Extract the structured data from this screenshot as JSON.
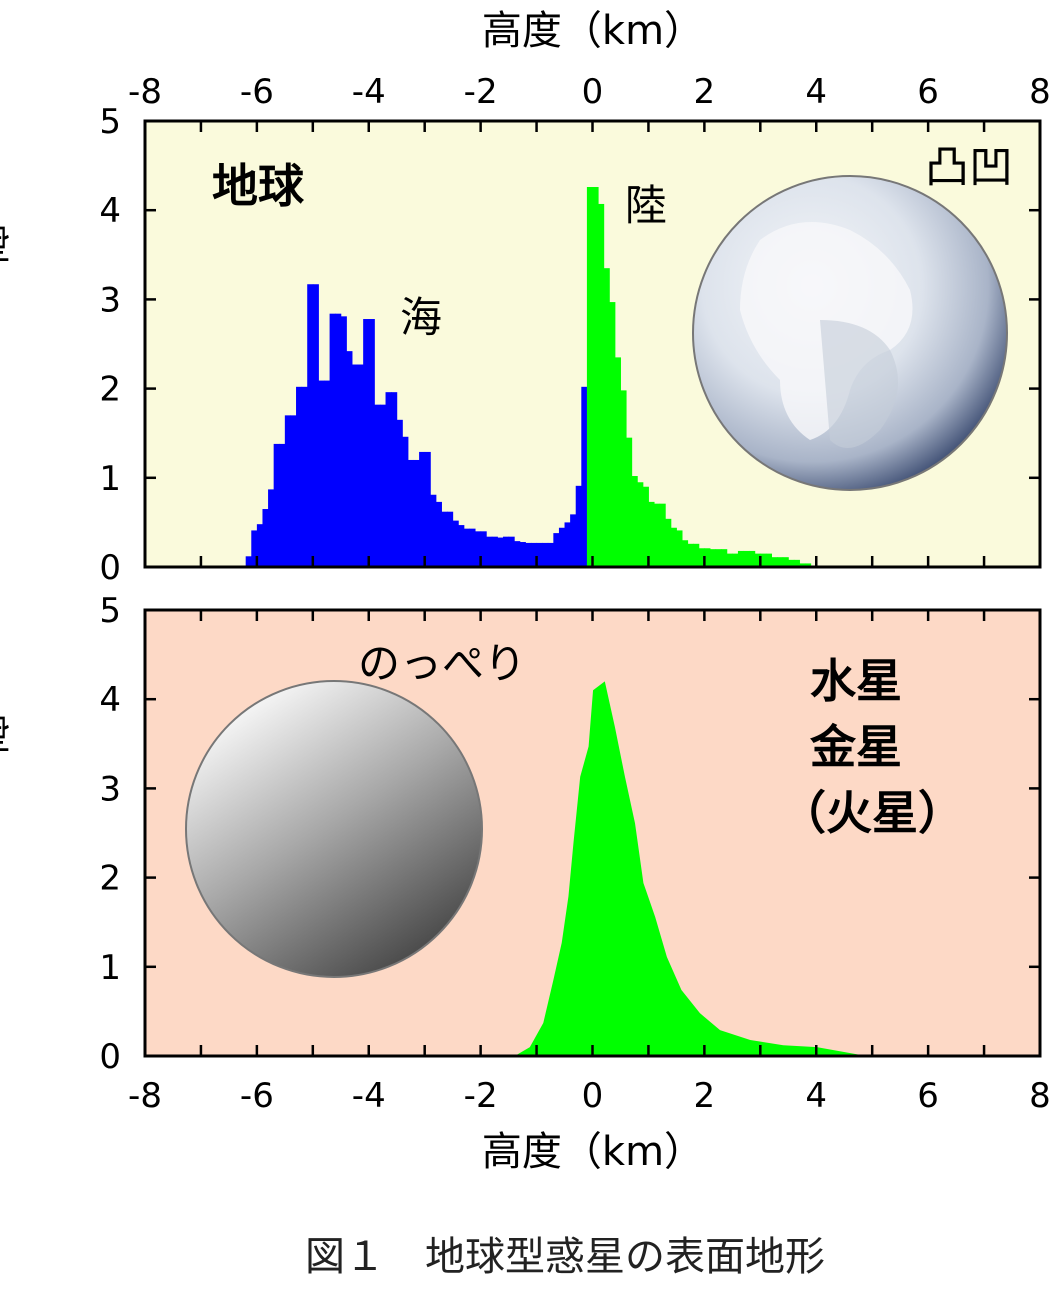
{
  "caption": "図１　地球型惑星の表面地形",
  "colors": {
    "earth_background": "#fafadc",
    "planets_background": "#fdd9c6",
    "ocean": "#0000ff",
    "land": "#00ff00",
    "frame": "#000000"
  },
  "chart_data": [
    {
      "type": "bar",
      "panel": "top",
      "xlabel": "高度（km）",
      "ylabel": "割合（%）",
      "xlim": [
        -8,
        8
      ],
      "ylim": [
        0,
        5
      ],
      "x_ticks": [
        "-8",
        "-6",
        "-4",
        "-2",
        "0",
        "2",
        "4",
        "6",
        "8"
      ],
      "y_ticks": [
        "0",
        "1",
        "2",
        "3",
        "4",
        "5"
      ],
      "x_axis_position": "top",
      "grid": false,
      "annotations": {
        "planet": "地球",
        "ocean": "海",
        "land": "陸",
        "roughness": "凸凹"
      },
      "bin_width_km": 0.1,
      "series": [
        {
          "label": "海",
          "color": "#0000ff",
          "bin_start": -6.2,
          "values": [
            0.12,
            0.41,
            0.48,
            0.65,
            0.87,
            1.38,
            1.38,
            1.7,
            1.7,
            2.02,
            2.02,
            3.17,
            3.17,
            2.09,
            2.09,
            2.84,
            2.84,
            2.81,
            2.42,
            2.27,
            2.27,
            2.78,
            2.78,
            1.82,
            1.82,
            1.96,
            1.96,
            1.65,
            1.46,
            1.2,
            1.2,
            1.29,
            1.29,
            0.81,
            0.73,
            0.62,
            0.62,
            0.52,
            0.47,
            0.43,
            0.43,
            0.4,
            0.4,
            0.34,
            0.34,
            0.33,
            0.34,
            0.34,
            0.29,
            0.28,
            0.27,
            0.27,
            0.27,
            0.27,
            0.27,
            0.38,
            0.44,
            0.5,
            0.59,
            0.91,
            2.02
          ]
        },
        {
          "label": "陸",
          "color": "#00ff00",
          "bin_start": -0.1,
          "values": [
            4.26,
            4.26,
            4.07,
            3.35,
            2.97,
            2.35,
            1.98,
            1.45,
            1.02,
            0.95,
            0.9,
            0.73,
            0.71,
            0.71,
            0.54,
            0.44,
            0.41,
            0.3,
            0.26,
            0.26,
            0.21,
            0.21,
            0.2,
            0.2,
            0.2,
            0.15,
            0.15,
            0.18,
            0.18,
            0.18,
            0.15,
            0.15,
            0.15,
            0.11,
            0.11,
            0.11,
            0.08,
            0.08,
            0.04,
            0.04
          ]
        }
      ]
    },
    {
      "type": "area",
      "panel": "bottom",
      "xlabel": "高度（km）",
      "ylabel": "割合（%）",
      "xlim": [
        -8,
        8
      ],
      "ylim": [
        0,
        5
      ],
      "x_ticks": [
        "-8",
        "-6",
        "-4",
        "-2",
        "0",
        "2",
        "4",
        "6",
        "8"
      ],
      "y_ticks": [
        "0",
        "1",
        "2",
        "3",
        "4",
        "5"
      ],
      "x_axis_position": "bottom",
      "grid": false,
      "annotations": {
        "smoothness": "のっぺり",
        "planets": [
          "水星",
          "金星",
          "（火星）"
        ]
      },
      "series": [
        {
          "color": "#00ff00",
          "x": [
            -1.39,
            -1.12,
            -0.88,
            -0.7,
            -0.55,
            -0.43,
            -0.34,
            -0.22,
            -0.07,
            0.01,
            0.22,
            0.4,
            0.58,
            0.76,
            0.91,
            1.12,
            1.33,
            1.59,
            1.92,
            2.28,
            2.82,
            3.41,
            4.01,
            4.81
          ],
          "y": [
            0,
            0.1,
            0.37,
            0.85,
            1.27,
            1.79,
            2.39,
            3.13,
            3.47,
            4.1,
            4.2,
            3.69,
            3.13,
            2.61,
            1.94,
            1.56,
            1.11,
            0.74,
            0.48,
            0.29,
            0.18,
            0.12,
            0.1,
            0.01
          ]
        }
      ]
    }
  ]
}
